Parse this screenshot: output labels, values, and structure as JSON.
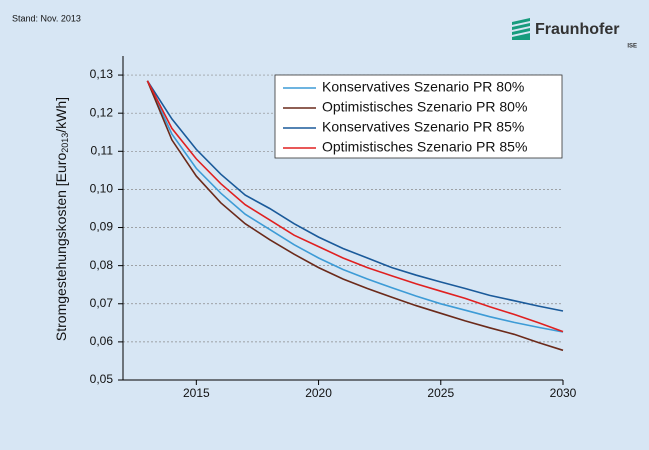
{
  "header": {
    "note": "Stand: Nov. 2013",
    "logo": "Fraunhofer",
    "logo_sub": "ISE"
  },
  "chart_data": {
    "type": "line",
    "ylabel": [
      "Stromgestehungskosten [Euro",
      "2013",
      "/kWh]"
    ],
    "x": [
      2013,
      2014,
      2015,
      2016,
      2017,
      2018,
      2019,
      2020,
      2021,
      2022,
      2023,
      2024,
      2025,
      2026,
      2027,
      2028,
      2029,
      2030
    ],
    "series": [
      {
        "name": "Konservatives Szenario PR 80%",
        "color": "#3d9bd6",
        "values": [
          0.1285,
          0.1145,
          0.1055,
          0.099,
          0.0935,
          0.0895,
          0.0855,
          0.082,
          0.079,
          0.0765,
          0.0742,
          0.072,
          0.07,
          0.0683,
          0.0666,
          0.0651,
          0.0638,
          0.0626
        ]
      },
      {
        "name": "Optimistisches Szenario PR 80%",
        "color": "#6b2a1a",
        "values": [
          0.1285,
          0.113,
          0.1035,
          0.0965,
          0.091,
          0.0868,
          0.083,
          0.0795,
          0.0765,
          0.074,
          0.0717,
          0.0695,
          0.0675,
          0.0655,
          0.0637,
          0.062,
          0.0598,
          0.0578
        ]
      },
      {
        "name": "Konservatives Szenario PR 85%",
        "color": "#1a5a9a",
        "values": [
          0.1285,
          0.1185,
          0.1105,
          0.104,
          0.0985,
          0.095,
          0.091,
          0.0875,
          0.0845,
          0.082,
          0.0795,
          0.0775,
          0.0757,
          0.074,
          0.0722,
          0.0708,
          0.0694,
          0.0681
        ]
      },
      {
        "name": "Optimistisches Szenario PR 85%",
        "color": "#e02020",
        "values": [
          0.1285,
          0.116,
          0.108,
          0.1015,
          0.096,
          0.092,
          0.088,
          0.085,
          0.082,
          0.0795,
          0.0773,
          0.0752,
          0.0733,
          0.0714,
          0.0692,
          0.0672,
          0.065,
          0.0627
        ]
      }
    ],
    "xlim": [
      2012,
      2030
    ],
    "xticks": [
      2015,
      2020,
      2025,
      2030
    ],
    "ylim": [
      0.05,
      0.135
    ],
    "yticks": [
      {
        "value": 0.05,
        "label": "0,05"
      },
      {
        "value": 0.06,
        "label": "0,06"
      },
      {
        "value": 0.07,
        "label": "0,07"
      },
      {
        "value": 0.08,
        "label": "0,08"
      },
      {
        "value": 0.09,
        "label": "0,09"
      },
      {
        "value": 0.1,
        "label": "0,10"
      },
      {
        "value": 0.11,
        "label": "0,11"
      },
      {
        "value": 0.12,
        "label": "0,12"
      },
      {
        "value": 0.13,
        "label": "0,13"
      }
    ],
    "grid": true,
    "legend": "top-right"
  }
}
